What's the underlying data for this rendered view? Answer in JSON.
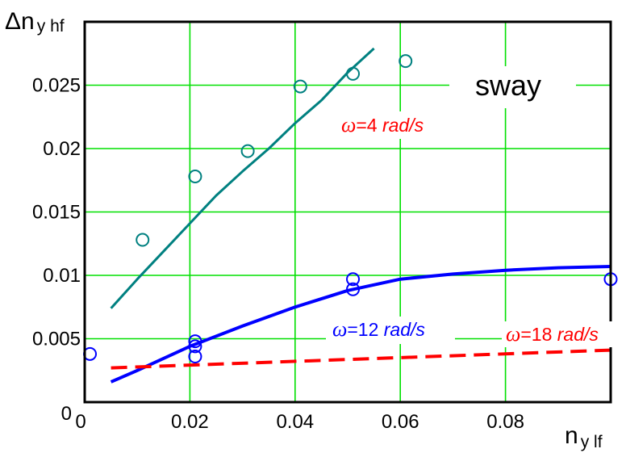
{
  "chart_data": {
    "type": "scatter",
    "title": "",
    "xlabel": {
      "main": "n",
      "sub": "y lf"
    },
    "ylabel": {
      "main": "Δn",
      "sub": "y hf"
    },
    "xlim": [
      0,
      0.1
    ],
    "ylim": [
      0,
      0.03
    ],
    "xticks": [
      {
        "v": 0,
        "label": "0"
      },
      {
        "v": 0.02,
        "label": "0.02"
      },
      {
        "v": 0.04,
        "label": "0.04"
      },
      {
        "v": 0.06,
        "label": "0.06"
      },
      {
        "v": 0.08,
        "label": "0.08"
      }
    ],
    "yticks": [
      {
        "v": 0,
        "label": "0"
      },
      {
        "v": 0.005,
        "label": "0.005"
      },
      {
        "v": 0.01,
        "label": "0.01"
      },
      {
        "v": 0.015,
        "label": "0.015"
      },
      {
        "v": 0.02,
        "label": "0.02"
      },
      {
        "v": 0.025,
        "label": "0.025"
      }
    ],
    "grid": true,
    "grid_color": "#00e000",
    "panel_label": "sway",
    "series": [
      {
        "key": "w4",
        "color": "#008080",
        "label_parts": [
          "ω",
          "=4 ",
          "rad/s"
        ],
        "label_color": "#ff0000",
        "points": [
          {
            "x": 0.011,
            "y": 0.0128
          },
          {
            "x": 0.021,
            "y": 0.0178
          },
          {
            "x": 0.031,
            "y": 0.0198
          },
          {
            "x": 0.041,
            "y": 0.0249
          },
          {
            "x": 0.051,
            "y": 0.0259
          },
          {
            "x": 0.061,
            "y": 0.0269
          }
        ],
        "fit": {
          "style": "solid",
          "x": [
            0.005,
            0.01,
            0.015,
            0.02,
            0.025,
            0.03,
            0.035,
            0.04,
            0.045,
            0.05,
            0.055
          ],
          "y": [
            0.0074,
            0.0097,
            0.0119,
            0.0141,
            0.0163,
            0.0182,
            0.02,
            0.022,
            0.0238,
            0.026,
            0.0279
          ]
        }
      },
      {
        "key": "w12",
        "color": "#0000ff",
        "label_parts": [
          "ω",
          "=12 ",
          "rad/s"
        ],
        "label_color": "#0000ff",
        "points": [
          {
            "x": 0.001,
            "y": 0.0038
          },
          {
            "x": 0.021,
            "y": 0.0048
          },
          {
            "x": 0.021,
            "y": 0.0044
          },
          {
            "x": 0.021,
            "y": 0.0036
          },
          {
            "x": 0.051,
            "y": 0.0097
          },
          {
            "x": 0.051,
            "y": 0.0089
          },
          {
            "x": 0.1,
            "y": 0.0097
          }
        ],
        "fit": {
          "style": "solid",
          "x": [
            0.005,
            0.01,
            0.02,
            0.03,
            0.04,
            0.05,
            0.06,
            0.07,
            0.08,
            0.09,
            0.1
          ],
          "y": [
            0.0016,
            0.0025,
            0.0044,
            0.006,
            0.0075,
            0.0088,
            0.0097,
            0.0101,
            0.0104,
            0.0106,
            0.0107
          ]
        }
      },
      {
        "key": "w18",
        "color": "#ff0000",
        "label_parts": [
          "ω",
          "=18 ",
          "rad/s"
        ],
        "label_color": "#ff0000",
        "points": [],
        "fit": {
          "style": "dashed",
          "x": [
            0.005,
            0.1
          ],
          "y": [
            0.0027,
            0.0041
          ]
        }
      }
    ]
  }
}
